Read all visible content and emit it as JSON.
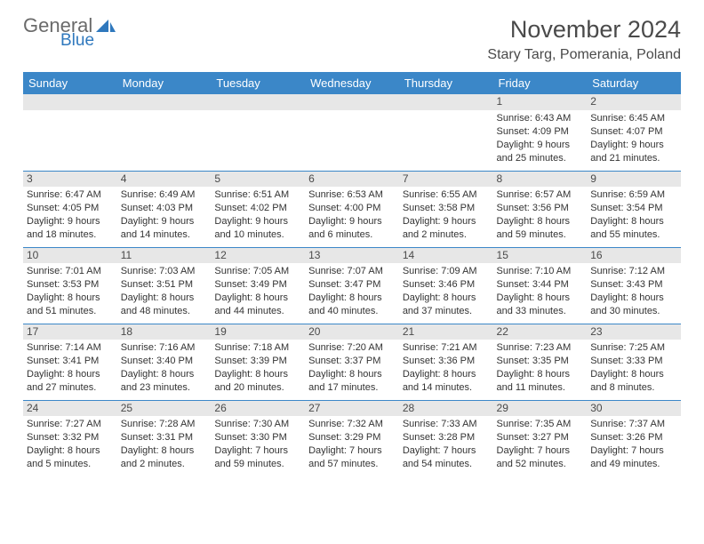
{
  "branding": {
    "general": "General",
    "blue": "Blue",
    "logo_color": "#2f78bd"
  },
  "header": {
    "month_title": "November 2024",
    "location": "Stary Targ, Pomerania, Poland"
  },
  "calendar": {
    "day_headers": [
      "Sunday",
      "Monday",
      "Tuesday",
      "Wednesday",
      "Thursday",
      "Friday",
      "Saturday"
    ],
    "header_bg": "#3b87c8",
    "daynum_bg": "#e7e7e7",
    "weeks": [
      [
        null,
        null,
        null,
        null,
        null,
        {
          "n": "1",
          "sr": "Sunrise: 6:43 AM",
          "ss": "Sunset: 4:09 PM",
          "d1": "Daylight: 9 hours",
          "d2": "and 25 minutes."
        },
        {
          "n": "2",
          "sr": "Sunrise: 6:45 AM",
          "ss": "Sunset: 4:07 PM",
          "d1": "Daylight: 9 hours",
          "d2": "and 21 minutes."
        }
      ],
      [
        {
          "n": "3",
          "sr": "Sunrise: 6:47 AM",
          "ss": "Sunset: 4:05 PM",
          "d1": "Daylight: 9 hours",
          "d2": "and 18 minutes."
        },
        {
          "n": "4",
          "sr": "Sunrise: 6:49 AM",
          "ss": "Sunset: 4:03 PM",
          "d1": "Daylight: 9 hours",
          "d2": "and 14 minutes."
        },
        {
          "n": "5",
          "sr": "Sunrise: 6:51 AM",
          "ss": "Sunset: 4:02 PM",
          "d1": "Daylight: 9 hours",
          "d2": "and 10 minutes."
        },
        {
          "n": "6",
          "sr": "Sunrise: 6:53 AM",
          "ss": "Sunset: 4:00 PM",
          "d1": "Daylight: 9 hours",
          "d2": "and 6 minutes."
        },
        {
          "n": "7",
          "sr": "Sunrise: 6:55 AM",
          "ss": "Sunset: 3:58 PM",
          "d1": "Daylight: 9 hours",
          "d2": "and 2 minutes."
        },
        {
          "n": "8",
          "sr": "Sunrise: 6:57 AM",
          "ss": "Sunset: 3:56 PM",
          "d1": "Daylight: 8 hours",
          "d2": "and 59 minutes."
        },
        {
          "n": "9",
          "sr": "Sunrise: 6:59 AM",
          "ss": "Sunset: 3:54 PM",
          "d1": "Daylight: 8 hours",
          "d2": "and 55 minutes."
        }
      ],
      [
        {
          "n": "10",
          "sr": "Sunrise: 7:01 AM",
          "ss": "Sunset: 3:53 PM",
          "d1": "Daylight: 8 hours",
          "d2": "and 51 minutes."
        },
        {
          "n": "11",
          "sr": "Sunrise: 7:03 AM",
          "ss": "Sunset: 3:51 PM",
          "d1": "Daylight: 8 hours",
          "d2": "and 48 minutes."
        },
        {
          "n": "12",
          "sr": "Sunrise: 7:05 AM",
          "ss": "Sunset: 3:49 PM",
          "d1": "Daylight: 8 hours",
          "d2": "and 44 minutes."
        },
        {
          "n": "13",
          "sr": "Sunrise: 7:07 AM",
          "ss": "Sunset: 3:47 PM",
          "d1": "Daylight: 8 hours",
          "d2": "and 40 minutes."
        },
        {
          "n": "14",
          "sr": "Sunrise: 7:09 AM",
          "ss": "Sunset: 3:46 PM",
          "d1": "Daylight: 8 hours",
          "d2": "and 37 minutes."
        },
        {
          "n": "15",
          "sr": "Sunrise: 7:10 AM",
          "ss": "Sunset: 3:44 PM",
          "d1": "Daylight: 8 hours",
          "d2": "and 33 minutes."
        },
        {
          "n": "16",
          "sr": "Sunrise: 7:12 AM",
          "ss": "Sunset: 3:43 PM",
          "d1": "Daylight: 8 hours",
          "d2": "and 30 minutes."
        }
      ],
      [
        {
          "n": "17",
          "sr": "Sunrise: 7:14 AM",
          "ss": "Sunset: 3:41 PM",
          "d1": "Daylight: 8 hours",
          "d2": "and 27 minutes."
        },
        {
          "n": "18",
          "sr": "Sunrise: 7:16 AM",
          "ss": "Sunset: 3:40 PM",
          "d1": "Daylight: 8 hours",
          "d2": "and 23 minutes."
        },
        {
          "n": "19",
          "sr": "Sunrise: 7:18 AM",
          "ss": "Sunset: 3:39 PM",
          "d1": "Daylight: 8 hours",
          "d2": "and 20 minutes."
        },
        {
          "n": "20",
          "sr": "Sunrise: 7:20 AM",
          "ss": "Sunset: 3:37 PM",
          "d1": "Daylight: 8 hours",
          "d2": "and 17 minutes."
        },
        {
          "n": "21",
          "sr": "Sunrise: 7:21 AM",
          "ss": "Sunset: 3:36 PM",
          "d1": "Daylight: 8 hours",
          "d2": "and 14 minutes."
        },
        {
          "n": "22",
          "sr": "Sunrise: 7:23 AM",
          "ss": "Sunset: 3:35 PM",
          "d1": "Daylight: 8 hours",
          "d2": "and 11 minutes."
        },
        {
          "n": "23",
          "sr": "Sunrise: 7:25 AM",
          "ss": "Sunset: 3:33 PM",
          "d1": "Daylight: 8 hours",
          "d2": "and 8 minutes."
        }
      ],
      [
        {
          "n": "24",
          "sr": "Sunrise: 7:27 AM",
          "ss": "Sunset: 3:32 PM",
          "d1": "Daylight: 8 hours",
          "d2": "and 5 minutes."
        },
        {
          "n": "25",
          "sr": "Sunrise: 7:28 AM",
          "ss": "Sunset: 3:31 PM",
          "d1": "Daylight: 8 hours",
          "d2": "and 2 minutes."
        },
        {
          "n": "26",
          "sr": "Sunrise: 7:30 AM",
          "ss": "Sunset: 3:30 PM",
          "d1": "Daylight: 7 hours",
          "d2": "and 59 minutes."
        },
        {
          "n": "27",
          "sr": "Sunrise: 7:32 AM",
          "ss": "Sunset: 3:29 PM",
          "d1": "Daylight: 7 hours",
          "d2": "and 57 minutes."
        },
        {
          "n": "28",
          "sr": "Sunrise: 7:33 AM",
          "ss": "Sunset: 3:28 PM",
          "d1": "Daylight: 7 hours",
          "d2": "and 54 minutes."
        },
        {
          "n": "29",
          "sr": "Sunrise: 7:35 AM",
          "ss": "Sunset: 3:27 PM",
          "d1": "Daylight: 7 hours",
          "d2": "and 52 minutes."
        },
        {
          "n": "30",
          "sr": "Sunrise: 7:37 AM",
          "ss": "Sunset: 3:26 PM",
          "d1": "Daylight: 7 hours",
          "d2": "and 49 minutes."
        }
      ]
    ]
  }
}
